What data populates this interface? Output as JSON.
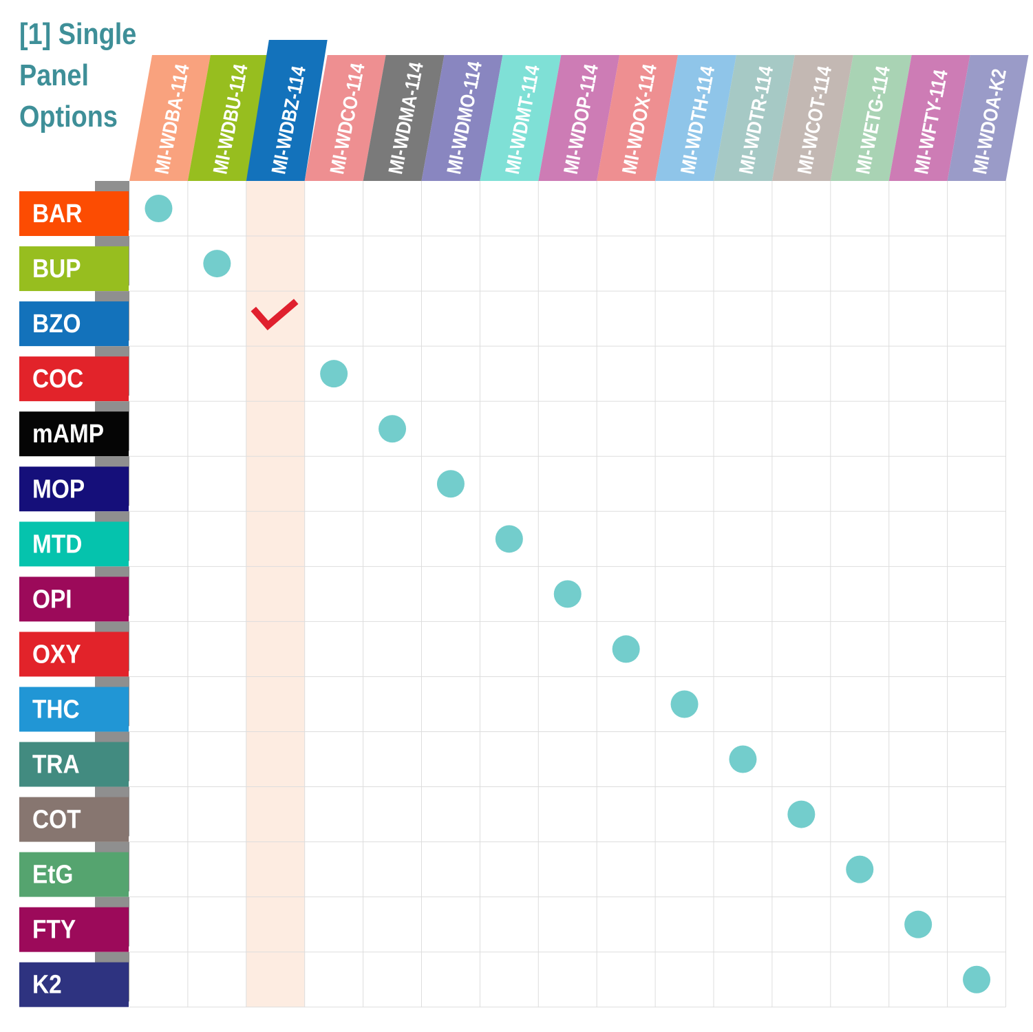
{
  "title": "[1] Single Panel Options",
  "chart_data": {
    "type": "table",
    "title": "[1] Single Panel Options",
    "columns": [
      {
        "label": "MI-WDBA-114",
        "color": "#f9a27e"
      },
      {
        "label": "MI-WDBU-114",
        "color": "#97be1f"
      },
      {
        "label": "MI-WDBZ-114",
        "color": "#1372bb"
      },
      {
        "label": "MI-WDCO-114",
        "color": "#ee8f91"
      },
      {
        "label": "MI-WDMA-114",
        "color": "#7a7a7a"
      },
      {
        "label": "MI-WDMO-114",
        "color": "#8986c0"
      },
      {
        "label": "MI-WDMT-114",
        "color": "#7fe0d6"
      },
      {
        "label": "MI-WDOP-114",
        "color": "#cd7cb5"
      },
      {
        "label": "MI-WDOX-114",
        "color": "#ee8f91"
      },
      {
        "label": "MI-WDTH-114",
        "color": "#8fc5e9"
      },
      {
        "label": "MI-WDTR-114",
        "color": "#a6c9c5"
      },
      {
        "label": "MI-WCOT-114",
        "color": "#c3b8b3"
      },
      {
        "label": "MI-WETG-114",
        "color": "#a9d3b4"
      },
      {
        "label": "MI-WFTY-114",
        "color": "#cd7cb5"
      },
      {
        "label": "MI-WDOA-K2",
        "color": "#9a9bc8"
      }
    ],
    "rows": [
      {
        "label": "BAR",
        "color": "#fc4c02"
      },
      {
        "label": "BUP",
        "color": "#97be1f"
      },
      {
        "label": "BZO",
        "color": "#1372bb"
      },
      {
        "label": "COC",
        "color": "#e2232a"
      },
      {
        "label": "mAMP",
        "color": "#050505"
      },
      {
        "label": "MOP",
        "color": "#150f7a"
      },
      {
        "label": "MTD",
        "color": "#05c3ad"
      },
      {
        "label": "OPI",
        "color": "#9c0a5a"
      },
      {
        "label": "OXY",
        "color": "#e2232a"
      },
      {
        "label": "THC",
        "color": "#2196d5"
      },
      {
        "label": "TRA",
        "color": "#428b80"
      },
      {
        "label": "COT",
        "color": "#877670"
      },
      {
        "label": "EtG",
        "color": "#55a46f"
      },
      {
        "label": "FTY",
        "color": "#9c0a5a"
      },
      {
        "label": "K2",
        "color": "#2e3380"
      }
    ],
    "marks": [
      {
        "row": 0,
        "col": 0,
        "type": "dot"
      },
      {
        "row": 1,
        "col": 1,
        "type": "dot"
      },
      {
        "row": 2,
        "col": 2,
        "type": "check"
      },
      {
        "row": 3,
        "col": 3,
        "type": "dot"
      },
      {
        "row": 4,
        "col": 4,
        "type": "dot"
      },
      {
        "row": 5,
        "col": 5,
        "type": "dot"
      },
      {
        "row": 6,
        "col": 6,
        "type": "dot"
      },
      {
        "row": 7,
        "col": 7,
        "type": "dot"
      },
      {
        "row": 8,
        "col": 8,
        "type": "dot"
      },
      {
        "row": 9,
        "col": 9,
        "type": "dot"
      },
      {
        "row": 10,
        "col": 10,
        "type": "dot"
      },
      {
        "row": 11,
        "col": 11,
        "type": "dot"
      },
      {
        "row": 12,
        "col": 12,
        "type": "dot"
      },
      {
        "row": 13,
        "col": 13,
        "type": "dot"
      },
      {
        "row": 14,
        "col": 14,
        "type": "dot"
      }
    ],
    "highlight_column": 2,
    "colors": {
      "title": "#3e8f98",
      "dot": "#73cdcc",
      "check": "#e0202e",
      "highlight": "#fdece1",
      "grid": "#dddddd",
      "row_shadow": "#8f8f8f"
    }
  }
}
